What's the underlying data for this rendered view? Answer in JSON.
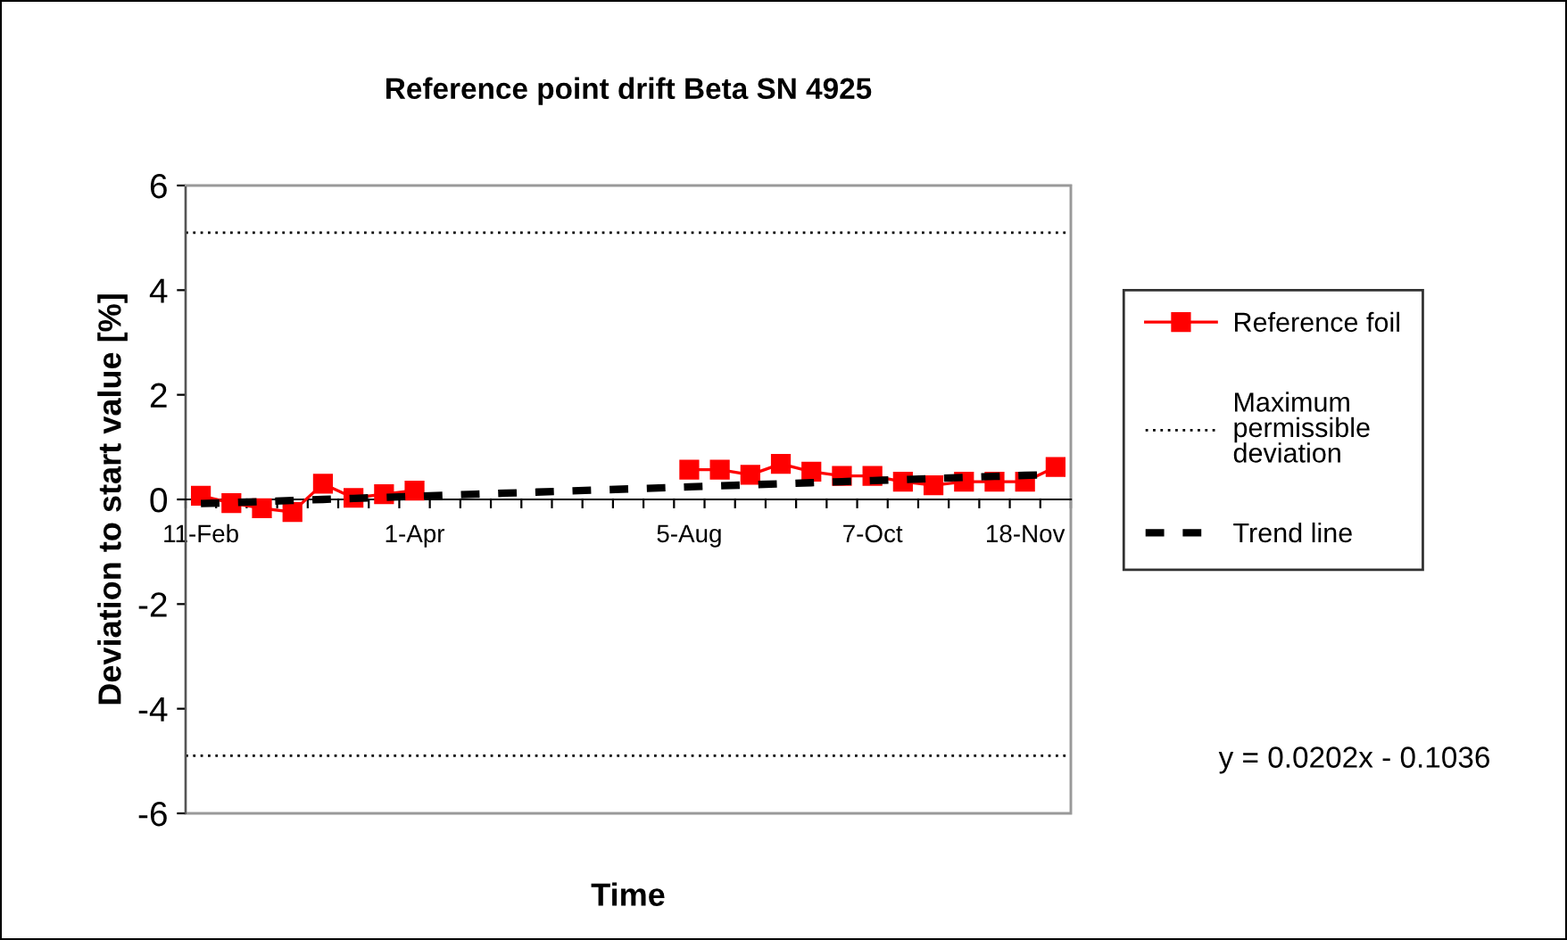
{
  "chart_data": {
    "type": "line",
    "title": "Reference point drift Beta SN 4925",
    "xlabel": "Time",
    "ylabel": "Deviation to start value [%]",
    "categories": [
      "11-Feb",
      null,
      null,
      null,
      null,
      null,
      null,
      "1-Apr",
      null,
      null,
      null,
      null,
      null,
      null,
      null,
      null,
      "5-Aug",
      null,
      null,
      null,
      null,
      null,
      "7-Oct",
      null,
      null,
      null,
      null,
      "18-Nov",
      null
    ],
    "series": [
      {
        "name": "Reference foil",
        "color": "#ff0000",
        "marker": "square",
        "line_style": "solid",
        "values": [
          0.07,
          -0.07,
          -0.17,
          -0.24,
          0.3,
          0.03,
          0.1,
          0.17,
          null,
          null,
          null,
          null,
          null,
          null,
          null,
          null,
          0.57,
          0.57,
          0.47,
          0.68,
          0.53,
          0.45,
          0.45,
          0.34,
          0.27,
          0.34,
          0.34,
          0.34,
          0.62
        ]
      },
      {
        "name": "Trend line",
        "color": "#000000",
        "marker": "none",
        "line_style": "dashed",
        "values": [
          -0.08,
          -0.06,
          -0.04,
          -0.02,
          0.0,
          0.02,
          0.04,
          0.06,
          0.08,
          0.1,
          0.12,
          0.14,
          0.16,
          0.18,
          0.2,
          0.22,
          0.24,
          0.26,
          0.28,
          0.3,
          0.32,
          0.34,
          0.36,
          0.38,
          0.4,
          0.42,
          0.44,
          0.46,
          0.48
        ]
      }
    ],
    "ref_lines": [
      {
        "axis": "y",
        "value": 5.1,
        "label": "Maximum permissible deviation",
        "color": "#000000",
        "line_style": "dotted"
      },
      {
        "axis": "y",
        "value": -4.9,
        "color": "#000000",
        "line_style": "dotted"
      }
    ],
    "annotations": [
      "y = 0.0202x - 0.1036"
    ],
    "ylim": [
      -6,
      6
    ],
    "yticks": [
      -6,
      -4,
      -2,
      0,
      2,
      4,
      6
    ],
    "grid": false,
    "legend": "right"
  }
}
